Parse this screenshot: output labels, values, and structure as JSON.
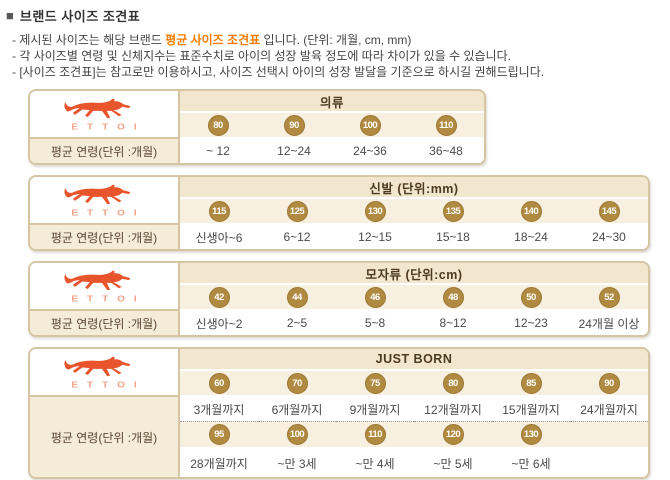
{
  "header": {
    "bullet": "■",
    "title": "브랜드 사이즈 조견표",
    "notes": [
      {
        "segments": [
          {
            "text": "- 제시된 사이즈는 해당 브랜드 "
          },
          {
            "text": "평균 사이즈 조견표",
            "highlight": true
          },
          {
            "text": " 입니다.  (단위: 개월, cm, mm)"
          }
        ]
      },
      {
        "segments": [
          {
            "text": "- 각 사이즈별 연령 및 신체지수는 표준수치로 아이의 성장 발육 정도에 따라 차이가 있을 수 있습니다."
          }
        ]
      },
      {
        "segments": [
          {
            "text": "- [사이즈 조견표]는 참고로만 이용하시고, 사이즈 선택시 아이의 성장 발달을 기준으로 하시길 권해드립니다."
          }
        ]
      }
    ]
  },
  "brand": {
    "name": "ETTOI",
    "logo_icon": "horse-icon"
  },
  "row_label": "평균 연령(단위 :개월)",
  "tables": [
    {
      "id": "clothing",
      "title": "의류",
      "rows": [
        {
          "sizes": [
            "80",
            "90",
            "100",
            "110"
          ],
          "ages": [
            "~ 12",
            "12~24",
            "24~36",
            "36~48"
          ]
        }
      ]
    },
    {
      "id": "shoes",
      "title": "신발 (단위:mm)",
      "rows": [
        {
          "sizes": [
            "115",
            "125",
            "130",
            "135",
            "140",
            "145"
          ],
          "ages": [
            "신생아~6",
            "6~12",
            "12~15",
            "15~18",
            "18~24",
            "24~30"
          ]
        }
      ]
    },
    {
      "id": "hats",
      "title": "모자류 (단위:cm)",
      "rows": [
        {
          "sizes": [
            "42",
            "44",
            "46",
            "48",
            "50",
            "52"
          ],
          "ages": [
            "신생아~2",
            "2~5",
            "5~8",
            "8~12",
            "12~23",
            "24개월 이상"
          ]
        }
      ]
    },
    {
      "id": "just-born",
      "title": "JUST BORN",
      "columns": 6,
      "rows": [
        {
          "sizes": [
            "60",
            "70",
            "75",
            "80",
            "85",
            "90"
          ],
          "ages": [
            "3개월까지",
            "6개월까지",
            "9개월까지",
            "12개월까지",
            "15개월까지",
            "24개월까지"
          ]
        },
        {
          "sizes": [
            "95",
            "100",
            "110",
            "120",
            "130"
          ],
          "ages": [
            "28개월까지",
            "~만 3세",
            "~만 4세",
            "~만 5세",
            "~만 6세"
          ]
        }
      ]
    }
  ],
  "colors": {
    "highlight_orange": "#f57c00",
    "logo_orange": "#e8542b",
    "logo_text_salmon": "#f2a285",
    "badge_gold": "#b18a41",
    "badge_border": "#9c7733",
    "table_border": "#d5c5a4",
    "title_row_bg": "#f2e6cf",
    "badge_row_bg": "#f7efdf",
    "label_cell_bg": "#f5ecd8",
    "title_text": "#4c3a22",
    "note_text": "#444444",
    "value_text": "#4a4a4a",
    "label_text": "#5a4831"
  }
}
